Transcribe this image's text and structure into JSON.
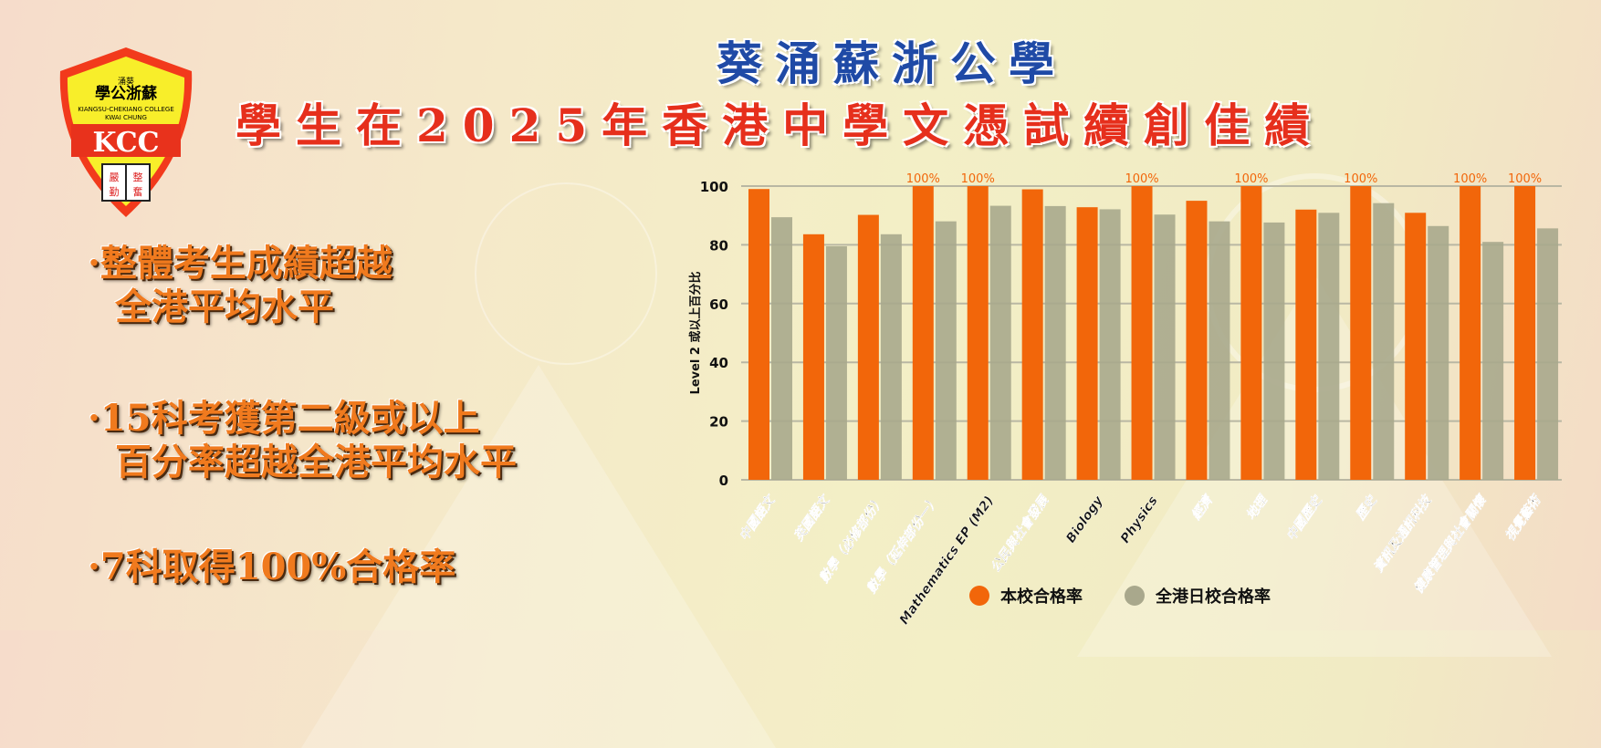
{
  "logo": {
    "top_small": "涌葵",
    "name_zh": "學公浙蘇",
    "name_en_1": "KIANGSU-CHEKIANG COLLEGE",
    "name_en_2": "KWAI CHUNG",
    "initials": "KCC",
    "motto": [
      "嚴",
      "整",
      "勤",
      "奮"
    ]
  },
  "title": {
    "line1": "葵涌蘇浙公學",
    "line2": "學生在2025年香港中學文憑試續創佳績"
  },
  "highlights": [
    {
      "line1": "·整體考生成績超越",
      "line2": "全港平均水平"
    },
    {
      "line1": "·15科考獲第二級或以上",
      "line2": "百分率超越全港平均水平"
    },
    {
      "line1": "·7科取得100%合格率",
      "line2": ""
    }
  ],
  "colors": {
    "school": "#f2660a",
    "hk": "#a9a88c"
  },
  "chart_data": {
    "type": "bar",
    "title": "",
    "xlabel": "",
    "ylabel": "Level 2 或以上百分比",
    "ylim": [
      0,
      100
    ],
    "yticks": [
      0,
      20,
      40,
      60,
      80,
      100
    ],
    "grid": true,
    "legend_position": "bottom",
    "categories": [
      "中國語文",
      "英國語文",
      "數學（必修部份）",
      "數學（延伸部份一）",
      "Mathematics EP (M2)",
      "公民與社會發展",
      "Biology",
      "Physics",
      "經濟",
      "地理",
      "中國歷史",
      "歷史",
      "資訊及通訊科技",
      "健康管理與社會關懷",
      "視覺藝術"
    ],
    "series": [
      {
        "name": "本校合格率",
        "values": [
          99,
          83.6,
          90.2,
          100,
          100,
          98.9,
          92.8,
          100,
          95,
          100,
          92,
          100,
          90.9,
          100,
          100
        ]
      },
      {
        "name": "全港日校合格率",
        "values": [
          89.4,
          79.5,
          83.6,
          88,
          93.3,
          93.2,
          92.1,
          90.3,
          88,
          87.6,
          90.9,
          94.2,
          86.4,
          81,
          85.6
        ]
      }
    ],
    "data_label": "100%"
  }
}
